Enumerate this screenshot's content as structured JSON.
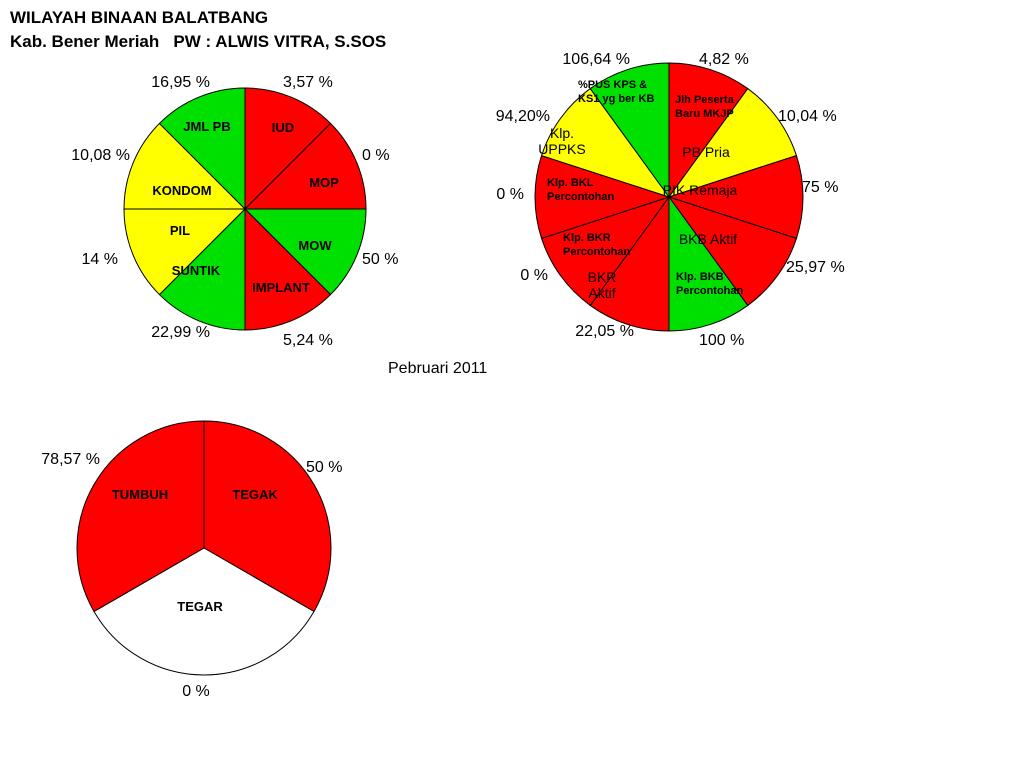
{
  "header": {
    "title": "WILAYAH BINAAN BALATBANG",
    "subtitle": "Kab. Bener Meriah   PW : ALWIS VITRA, S.SOS"
  },
  "caption": "Pebruari  2011",
  "colors": {
    "red": "#ff0000",
    "green": "#00e000",
    "yellow": "#ffff00",
    "white": "#ffffff"
  },
  "chart_data": [
    {
      "type": "pie",
      "slices": [
        {
          "label": "IUD",
          "value_label": "3,57 %",
          "color": "red"
        },
        {
          "label": "MOP",
          "value_label": "0 %",
          "color": "red"
        },
        {
          "label": "MOW",
          "value_label": "50 %",
          "color": "green"
        },
        {
          "label": "IMPLANT",
          "value_label": "5,24 %",
          "color": "red"
        },
        {
          "label": "SUNTIK",
          "value_label": "22,99 %",
          "color": "green"
        },
        {
          "label": "PIL",
          "value_label": "14 %",
          "color": "yellow"
        },
        {
          "label": "KONDOM",
          "value_label": "10,08 %",
          "color": "yellow"
        },
        {
          "label": "JML PB",
          "value_label": "16,95 %",
          "color": "green"
        }
      ]
    },
    {
      "type": "pie",
      "slices": [
        {
          "label": [
            "Jlh Peserta",
            "Baru MKJP"
          ],
          "value_label": "4,82 %",
          "color": "red"
        },
        {
          "label": [
            "PB Pria"
          ],
          "value_label": "10,04 %",
          "color": "yellow"
        },
        {
          "label": [
            "PIK Remaja"
          ],
          "value_label": "75 %",
          "color": "red"
        },
        {
          "label": [
            "BKB Aktif"
          ],
          "value_label": "25,97 %",
          "color": "red"
        },
        {
          "label": [
            "Klp. BKB",
            "Percontohan"
          ],
          "value_label": "100 %",
          "color": "green"
        },
        {
          "label": [
            "BKR",
            "Aktif"
          ],
          "value_label": "22,05 %",
          "color": "red"
        },
        {
          "label": [
            "Klp. BKR",
            "Percontohan"
          ],
          "value_label": "0 %",
          "color": "red"
        },
        {
          "label": [
            "Klp. BKL",
            "Percontohan"
          ],
          "value_label": "0 %",
          "color": "red"
        },
        {
          "label": [
            "Klp.",
            "UPPKS"
          ],
          "value_label": "94,20%",
          "color": "yellow"
        },
        {
          "label": [
            "%PUS KPS &",
            "KS1 yg ber KB"
          ],
          "value_label": "106,64 %",
          "color": "green"
        }
      ]
    },
    {
      "type": "pie",
      "slices": [
        {
          "label": "TEGAK",
          "value_label": "50 %",
          "color": "red"
        },
        {
          "label": "TEGAR",
          "value_label": "0 %",
          "color": "white"
        },
        {
          "label": "TUMBUH",
          "value_label": "78,57 %",
          "color": "red"
        }
      ]
    }
  ]
}
